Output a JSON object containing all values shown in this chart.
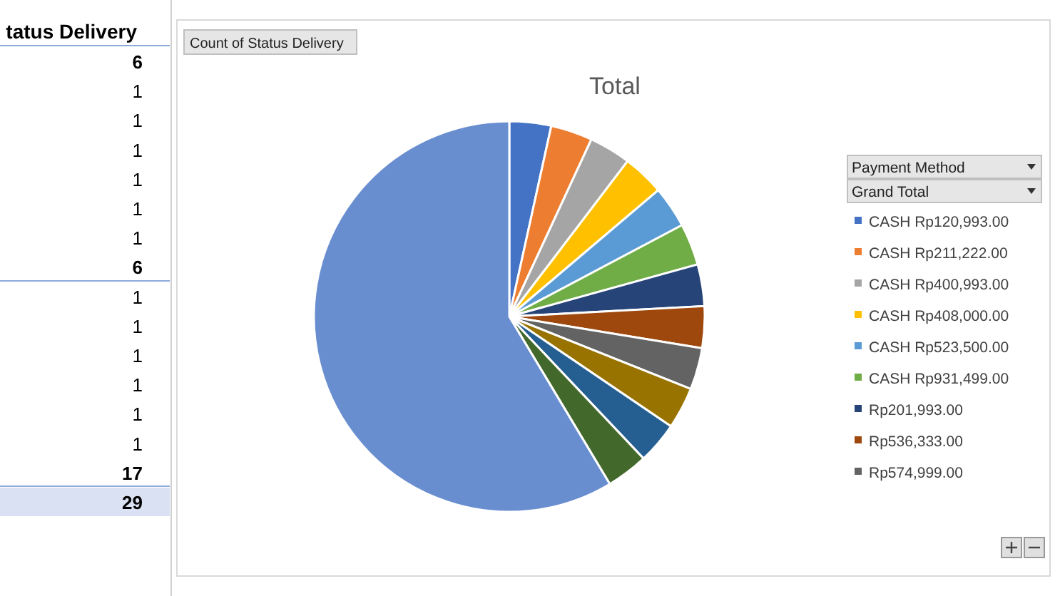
{
  "chart_data": {
    "type": "pie",
    "title": "Total",
    "legend_title": "Payment Method",
    "legend": "right",
    "categories": [
      "CASH  Rp120,993.00",
      "CASH  Rp211,222.00",
      "CASH  Rp400,993.00",
      "CASH  Rp408,000.00",
      "CASH  Rp523,500.00",
      "CASH  Rp931,499.00",
      "Rp201,993.00",
      "Rp536,333.00",
      "Rp574,999.00",
      null,
      null,
      null,
      null
    ],
    "values": [
      3.45,
      3.45,
      3.45,
      3.45,
      3.45,
      3.45,
      3.45,
      3.45,
      3.45,
      3.45,
      3.45,
      3.45,
      58.6
    ],
    "colors": [
      "#4472c4",
      "#ed7d31",
      "#a5a5a5",
      "#ffc000",
      "#5b9bd5",
      "#70ad47",
      "#264478",
      "#9e480e",
      "#636363",
      "#997300",
      "#255e91",
      "#43682b",
      "#698ed0"
    ],
    "annotations": [
      "Count of Status Delivery",
      "Grand Total",
      "tatus Delivery",
      "6",
      "1",
      "1",
      "1",
      "1",
      "1",
      "1",
      "6",
      "1",
      "1",
      "1",
      "1",
      "1",
      "1",
      "17",
      "29"
    ]
  }
}
